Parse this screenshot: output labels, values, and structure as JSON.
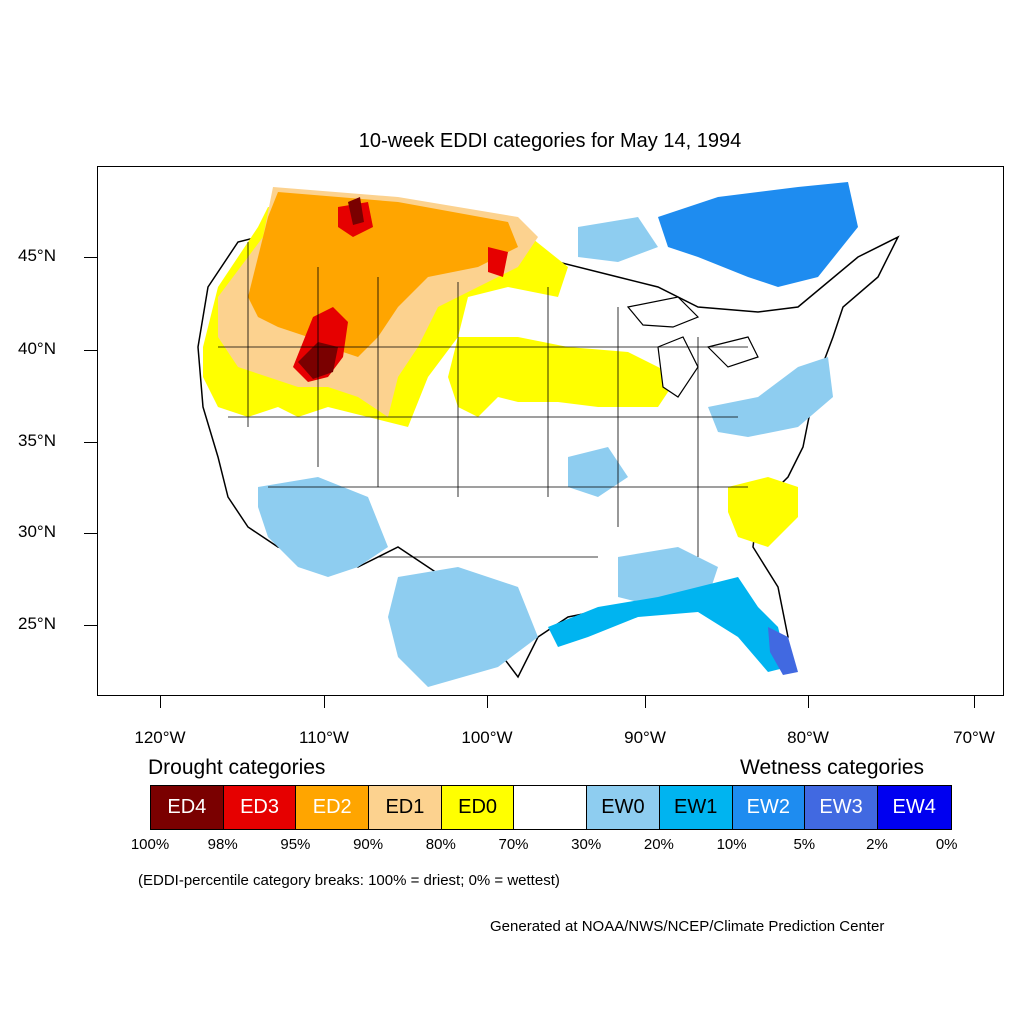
{
  "title": "10-week EDDI categories for May 14, 1994",
  "lat_labels": [
    "45°N",
    "40°N",
    "35°N",
    "30°N",
    "25°N"
  ],
  "lon_labels": [
    "120°W",
    "110°W",
    "100°W",
    "90°W",
    "80°W",
    "70°W"
  ],
  "legend": {
    "drought_title": "Drought categories",
    "wetness_title": "Wetness categories",
    "categories": [
      {
        "label": "ED4",
        "color": "#7a0000",
        "text_color": "#ffffff"
      },
      {
        "label": "ED3",
        "color": "#e60000",
        "text_color": "#ffffff"
      },
      {
        "label": "ED2",
        "color": "#ffa500",
        "text_color": "#ffffff"
      },
      {
        "label": "ED1",
        "color": "#fcd28f",
        "text_color": "#000000"
      },
      {
        "label": "ED0",
        "color": "#ffff00",
        "text_color": "#000000"
      },
      {
        "label": "",
        "color": "#ffffff",
        "text_color": "#000000"
      },
      {
        "label": "EW0",
        "color": "#8ecdf0",
        "text_color": "#000000"
      },
      {
        "label": "EW1",
        "color": "#00b4f0",
        "text_color": "#000000"
      },
      {
        "label": "EW2",
        "color": "#1e8cf0",
        "text_color": "#ffffff"
      },
      {
        "label": "EW3",
        "color": "#4169e1",
        "text_color": "#ffffff"
      },
      {
        "label": "EW4",
        "color": "#0000f0",
        "text_color": "#ffffff"
      }
    ],
    "percentiles": [
      "100%",
      "98%",
      "95%",
      "90%",
      "80%",
      "70%",
      "30%",
      "20%",
      "10%",
      "5%",
      "2%",
      "0%"
    ]
  },
  "note": "(EDDI-percentile category breaks: 100% = driest; 0% = wettest)",
  "credit": "Generated at NOAA/NWS/NCEP/Climate Prediction Center"
}
